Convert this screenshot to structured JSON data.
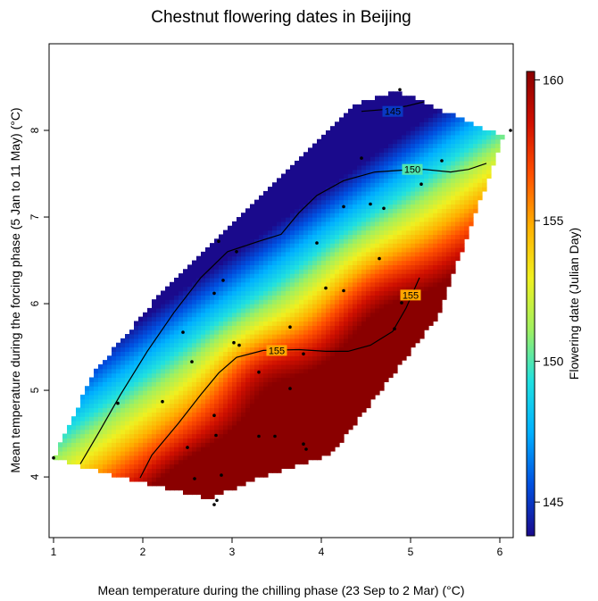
{
  "chart_data": {
    "type": "heatmap",
    "title": "Chestnut flowering dates in Beijing",
    "xlabel": "Mean temperature during the chilling phase (23 Sep to 2 Mar) (°C)",
    "ylabel": "Mean temperature during the forcing phase (5 Jan to 11 May) (°C)",
    "xlim": [
      0.95,
      6.15
    ],
    "ylim": [
      3.3,
      9.0
    ],
    "x_ticks": [
      "1",
      "2",
      "3",
      "4",
      "5",
      "6"
    ],
    "y_ticks": [
      "4",
      "5",
      "6",
      "7",
      "8"
    ],
    "colorbar": {
      "label": "Flowering date (Julian Day)",
      "range": [
        143.8,
        160.3
      ],
      "ticks": [
        "145",
        "150",
        "155",
        "160"
      ],
      "colors": [
        "#1a0a8c",
        "#0050e0",
        "#00b0ff",
        "#20e0e0",
        "#a0f060",
        "#f0f020",
        "#ffb000",
        "#ff5000",
        "#d01000",
        "#8a0000"
      ]
    },
    "contours": [
      {
        "level": "145",
        "label_at": [
          4.8,
          8.22
        ],
        "path": [
          [
            4.45,
            8.22
          ],
          [
            4.7,
            8.24
          ],
          [
            4.95,
            8.28
          ],
          [
            5.15,
            8.33
          ]
        ]
      },
      {
        "level": "150",
        "label_at": [
          5.02,
          7.55
        ],
        "path": [
          [
            1.3,
            4.15
          ],
          [
            1.5,
            4.5
          ],
          [
            1.75,
            4.95
          ],
          [
            2.05,
            5.45
          ],
          [
            2.35,
            5.9
          ],
          [
            2.65,
            6.3
          ],
          [
            2.95,
            6.6
          ],
          [
            3.3,
            6.72
          ],
          [
            3.55,
            6.8
          ],
          [
            3.75,
            7.05
          ],
          [
            3.95,
            7.25
          ],
          [
            4.25,
            7.42
          ],
          [
            4.6,
            7.52
          ],
          [
            4.9,
            7.54
          ],
          [
            5.15,
            7.55
          ],
          [
            5.45,
            7.52
          ],
          [
            5.65,
            7.55
          ],
          [
            5.85,
            7.62
          ]
        ]
      },
      {
        "level": "155",
        "path": [
          [
            1.97,
            3.99
          ],
          [
            2.1,
            4.25
          ],
          [
            2.4,
            4.62
          ],
          [
            2.65,
            4.95
          ],
          [
            2.85,
            5.2
          ],
          [
            3.05,
            5.38
          ],
          [
            3.35,
            5.46
          ],
          [
            3.75,
            5.47
          ],
          [
            4.05,
            5.45
          ],
          [
            4.3,
            5.45
          ],
          [
            4.55,
            5.52
          ],
          [
            4.8,
            5.68
          ],
          [
            4.95,
            5.95
          ],
          [
            5.1,
            6.3
          ]
        ],
        "label_at": [
          3.5,
          5.46
        ],
        "label_at_2": [
          5.0,
          6.1
        ]
      }
    ],
    "points": [
      [
        1.0,
        4.22
      ],
      [
        1.72,
        4.85
      ],
      [
        2.22,
        4.87
      ],
      [
        2.45,
        5.67
      ],
      [
        2.5,
        4.34
      ],
      [
        2.55,
        5.33
      ],
      [
        2.58,
        3.98
      ],
      [
        2.8,
        3.68
      ],
      [
        2.8,
        4.71
      ],
      [
        2.82,
        4.48
      ],
      [
        2.83,
        3.73
      ],
      [
        2.8,
        6.12
      ],
      [
        2.85,
        6.72
      ],
      [
        2.9,
        6.27
      ],
      [
        2.88,
        4.02
      ],
      [
        3.02,
        5.55
      ],
      [
        3.05,
        6.6
      ],
      [
        3.08,
        5.52
      ],
      [
        3.3,
        5.21
      ],
      [
        3.3,
        4.47
      ],
      [
        3.48,
        4.47
      ],
      [
        3.65,
        5.02
      ],
      [
        3.65,
        5.73
      ],
      [
        3.8,
        5.42
      ],
      [
        3.8,
        4.38
      ],
      [
        3.83,
        4.32
      ],
      [
        3.95,
        6.7
      ],
      [
        4.05,
        6.18
      ],
      [
        4.25,
        6.15
      ],
      [
        4.25,
        7.12
      ],
      [
        4.45,
        7.68
      ],
      [
        4.55,
        7.15
      ],
      [
        4.65,
        6.52
      ],
      [
        4.7,
        7.1
      ],
      [
        4.82,
        5.71
      ],
      [
        4.88,
        8.47
      ],
      [
        4.9,
        6.01
      ],
      [
        5.12,
        7.38
      ],
      [
        5.35,
        7.65
      ],
      [
        6.12,
        8.0
      ]
    ]
  }
}
